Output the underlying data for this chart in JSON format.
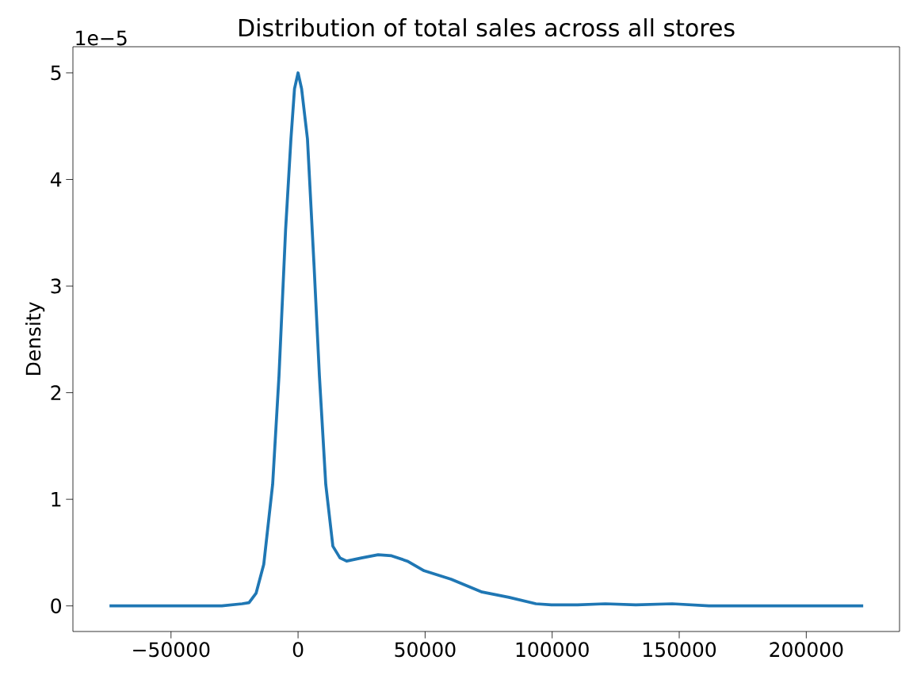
{
  "chart_data": {
    "type": "line",
    "title": "Distribution of total sales across all stores",
    "ylabel": "Density",
    "color": "#1f77b4",
    "x": [
      -74200,
      -30000,
      -22000,
      -19300,
      -16500,
      -13500,
      -10000,
      -7500,
      -4900,
      -2800,
      -1400,
      0,
      1400,
      3700,
      6300,
      8400,
      10900,
      13700,
      16500,
      19100,
      25000,
      31500,
      36800,
      43000,
      49600,
      60200,
      72400,
      83000,
      93600,
      99700,
      110000,
      120900,
      132900,
      147200,
      161700,
      190000,
      222400
    ],
    "values": [
      0,
      0,
      0.02,
      0.03,
      0.12,
      0.39,
      1.14,
      2.16,
      3.53,
      4.38,
      4.85,
      5.0,
      4.85,
      4.38,
      3.19,
      2.16,
      1.14,
      0.56,
      0.45,
      0.42,
      0.45,
      0.48,
      0.47,
      0.42,
      0.33,
      0.25,
      0.13,
      0.08,
      0.02,
      0.01,
      0.01,
      0.02,
      0.01,
      0.02,
      0,
      0,
      0
    ],
    "xlim": [
      -88600,
      236700
    ],
    "ylim": [
      -0.24,
      5.245
    ],
    "xticks": [
      {
        "value": -50000,
        "label": "−50000"
      },
      0,
      50000,
      100000,
      150000,
      200000
    ],
    "yticks": [
      0,
      1,
      2,
      3,
      4,
      5
    ],
    "annotations": [
      "1e−5"
    ]
  }
}
